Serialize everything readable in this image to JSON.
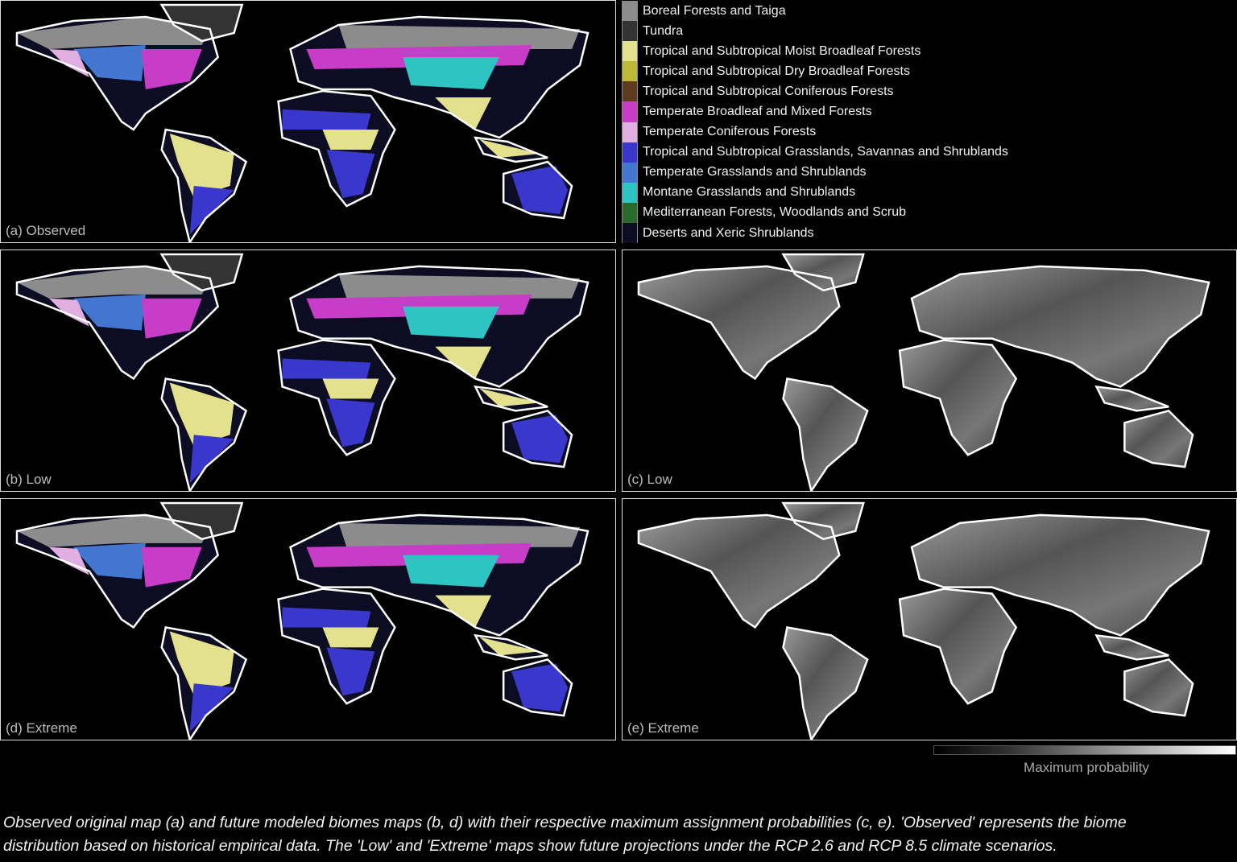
{
  "legend": {
    "items": [
      {
        "label": "Boreal Forests and Taiga",
        "color": "#8c8c8c"
      },
      {
        "label": "Tundra",
        "color": "#333333"
      },
      {
        "label": "Tropical and Subtropical Moist Broadleaf Forests",
        "color": "#e3e08e"
      },
      {
        "label": "Tropical and Subtropical Dry Broadleaf Forests",
        "color": "#bdb934"
      },
      {
        "label": "Tropical and Subtropical Coniferous Forests",
        "color": "#5e3a1f"
      },
      {
        "label": "Temperate Broadleaf and Mixed Forests",
        "color": "#c83dc8"
      },
      {
        "label": "Temperate Coniferous Forests",
        "color": "#e0aee0"
      },
      {
        "label": "Tropical and Subtropical Grasslands, Savannas and Shrublands",
        "color": "#3a38cc"
      },
      {
        "label": "Temperate Grasslands and Shrublands",
        "color": "#4276d0"
      },
      {
        "label": "Montane Grasslands and Shrublands",
        "color": "#2ec4c4"
      },
      {
        "label": "Mediterranean Forests, Woodlands and Scrub",
        "color": "#2a6a2a"
      },
      {
        "label": "Deserts and Xeric Shrublands",
        "color": "#0c0c22"
      }
    ]
  },
  "panels": {
    "a": {
      "label": "(a) Observed",
      "type": "biome"
    },
    "b": {
      "label": "(b) Low",
      "type": "biome"
    },
    "c": {
      "label": "(c) Low",
      "type": "probability"
    },
    "d": {
      "label": "(d) Extreme",
      "type": "biome"
    },
    "e": {
      "label": "(e) Extreme",
      "type": "probability"
    }
  },
  "colorbar": {
    "label": "Maximum probability",
    "from": "#000000",
    "to": "#ffffff"
  },
  "caption": {
    "line1": "Observed original map (a) and future modeled biomes maps (b, d) with their respective maximum assignment probabilities (c, e). 'Observed' represents the biome",
    "line2": "distribution based on historical empirical data. The 'Low' and 'Extreme' maps show future projections under the RCP 2.6 and RCP 8.5 climate scenarios."
  }
}
